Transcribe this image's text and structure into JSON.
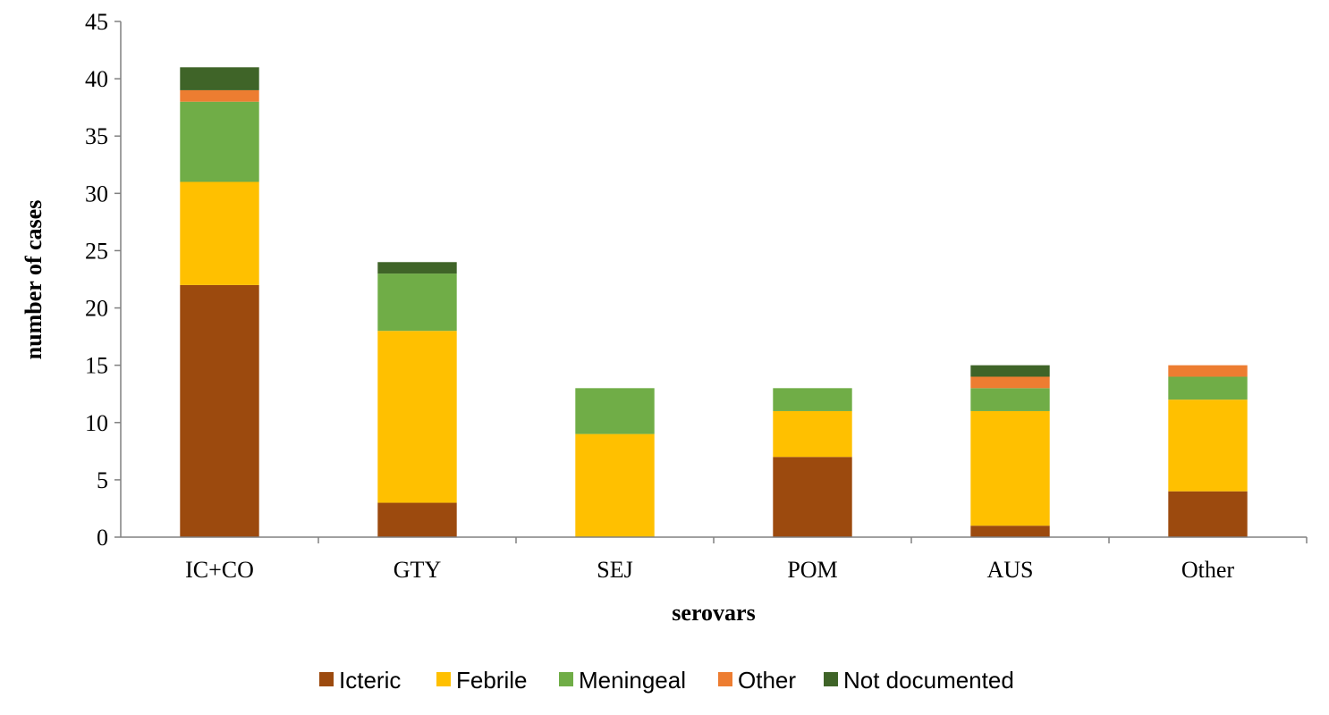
{
  "chart_data": {
    "type": "bar",
    "stacked": true,
    "title": "",
    "xlabel": "serovars",
    "ylabel": "number of cases",
    "ylim": [
      0,
      45
    ],
    "yticks": [
      0,
      5,
      10,
      15,
      20,
      25,
      30,
      35,
      40,
      45
    ],
    "grid": false,
    "legend_position": "bottom",
    "categories": [
      "IC+CO",
      "GTY",
      "SEJ",
      "POM",
      "AUS",
      "Other"
    ],
    "series": [
      {
        "name": "Icteric",
        "color": "#9C4A0E",
        "values": [
          22,
          3,
          0,
          7,
          1,
          4
        ]
      },
      {
        "name": "Febrile",
        "color": "#FFC000",
        "values": [
          9,
          15,
          9,
          4,
          10,
          8
        ]
      },
      {
        "name": "Meningeal",
        "color": "#70AD47",
        "values": [
          7,
          5,
          4,
          2,
          2,
          2
        ]
      },
      {
        "name": "Other",
        "color": "#ED7D31",
        "values": [
          1,
          0,
          0,
          0,
          1,
          1
        ]
      },
      {
        "name": "Not documented",
        "color": "#3F6428",
        "values": [
          2,
          1,
          0,
          0,
          1,
          0
        ]
      }
    ]
  }
}
